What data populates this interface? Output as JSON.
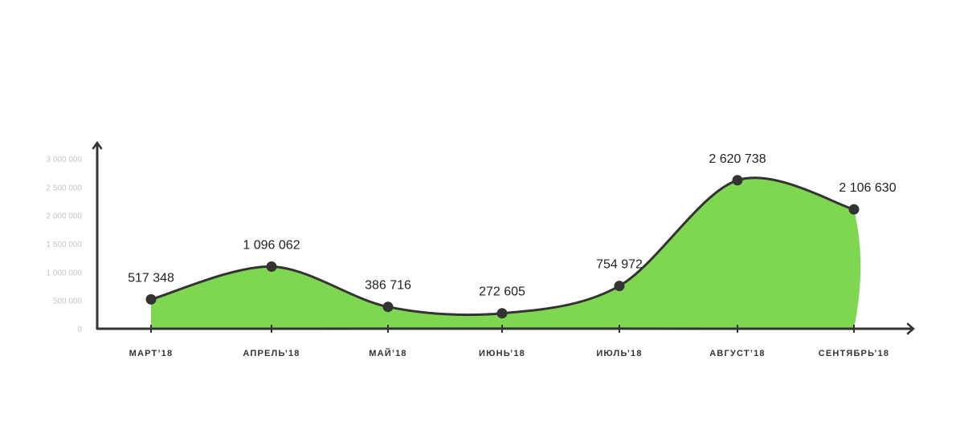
{
  "chart_data": {
    "type": "area",
    "title": "",
    "xlabel": "",
    "ylabel": "",
    "categories": [
      "МАРТ’18",
      "АПРЕЛЬ’18",
      "МАЙ’18",
      "ИЮНЬ’18",
      "ИЮЛЬ’18",
      "АВГУСТ’18",
      "СЕНТЯБРЬ’18"
    ],
    "values": [
      517348,
      1096062,
      386716,
      272605,
      754972,
      2620738,
      2106630
    ],
    "data_labels": [
      "517 348",
      "1 096 062",
      "386 716",
      "272 605",
      "754 972",
      "2 620 738",
      "2 106 630"
    ],
    "y_ticks": [
      0,
      500000,
      1000000,
      1500000,
      2000000,
      2500000,
      3000000
    ],
    "y_tick_labels": [
      "0",
      "500 000",
      "1 000 000",
      "1 500 000",
      "2 000 000",
      "2 500 000",
      "3 000 000"
    ],
    "ylim": [
      0,
      3000000
    ],
    "grid": false,
    "legend": "none",
    "colors": {
      "fill": "#7ed651",
      "line": "#333333",
      "axis": "#333333",
      "marker": "#333333"
    }
  }
}
